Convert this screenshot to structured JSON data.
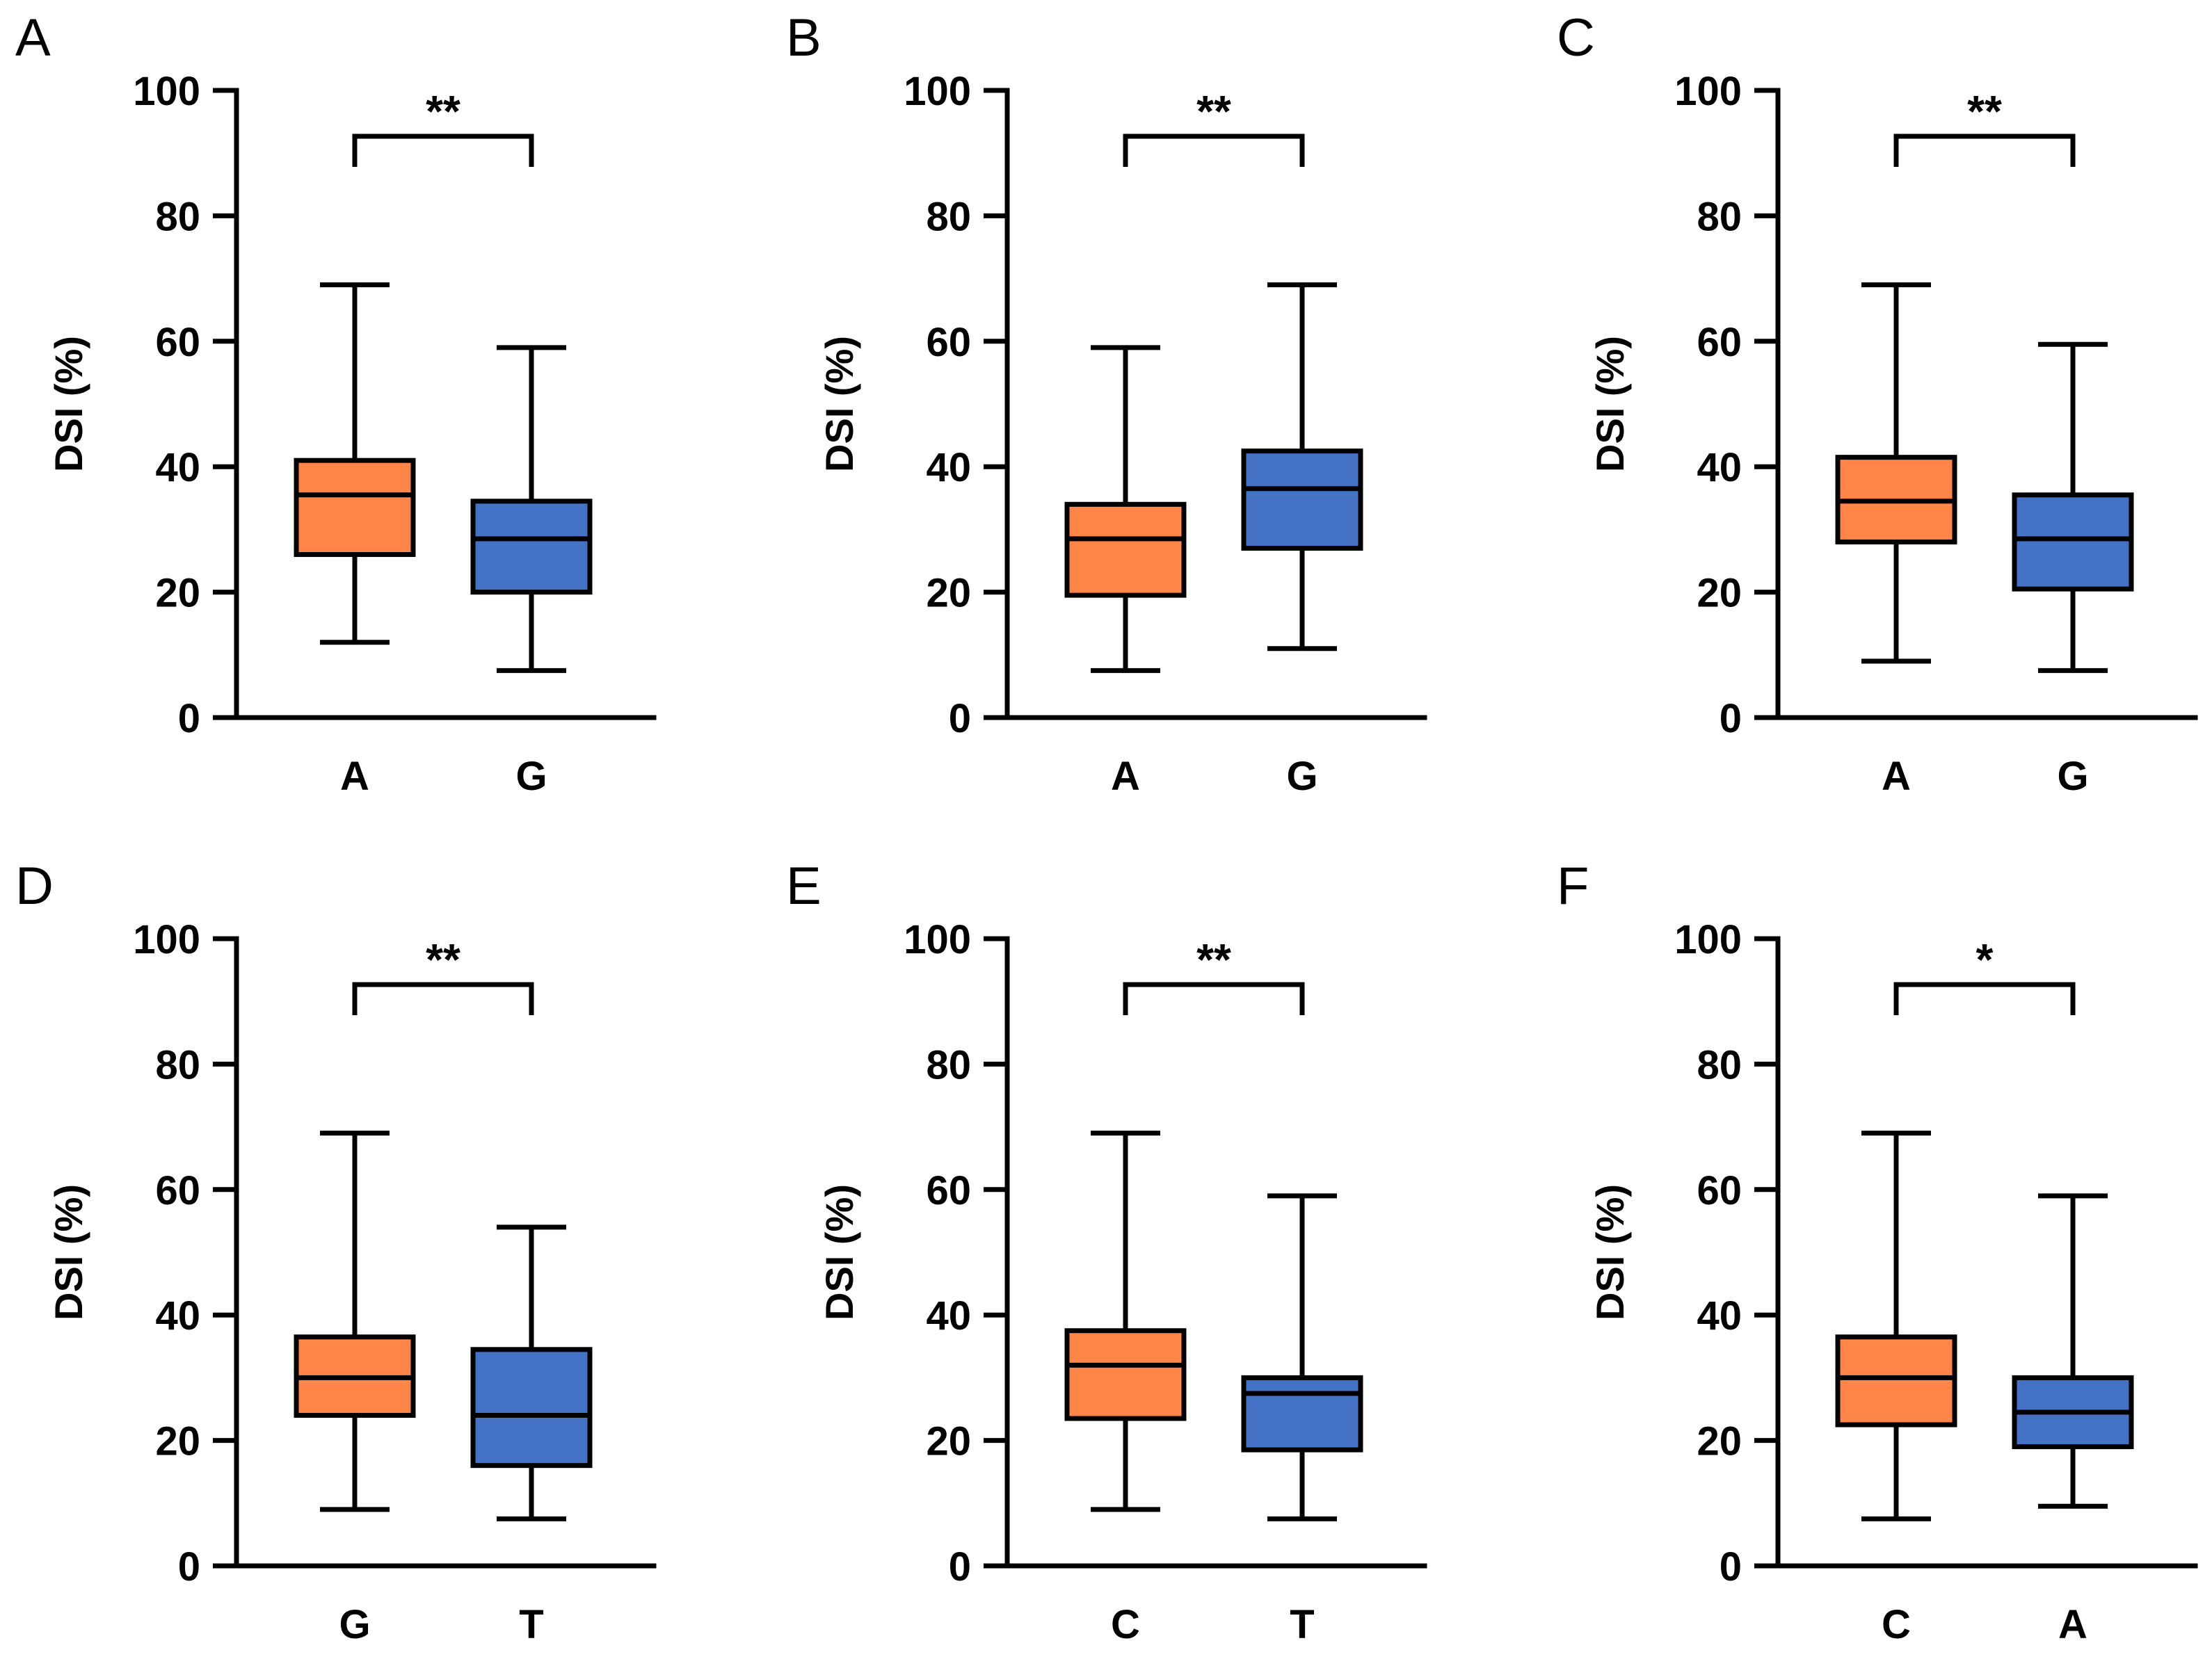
{
  "colors": {
    "orange": "#ff8548",
    "blue": "#4472c4",
    "axis": "#000000"
  },
  "chart_data": [
    {
      "panel": "A",
      "type": "box",
      "ylabel": "DSI (%)",
      "ylim": [
        0,
        100
      ],
      "yticks": [
        "0",
        "20",
        "40",
        "60",
        "80",
        "100"
      ],
      "categories": [
        "A",
        "G"
      ],
      "significance": "**",
      "boxes": [
        {
          "category": "A",
          "min": 12,
          "q1": 26,
          "median": 35.5,
          "q3": 41,
          "max": 69,
          "color": "#ff8548"
        },
        {
          "category": "G",
          "min": 7.5,
          "q1": 20,
          "median": 28.5,
          "q3": 34.5,
          "max": 59,
          "color": "#4472c4"
        }
      ]
    },
    {
      "panel": "B",
      "type": "box",
      "ylabel": "DSI (%)",
      "ylim": [
        0,
        100
      ],
      "yticks": [
        "0",
        "20",
        "40",
        "60",
        "80",
        "100"
      ],
      "categories": [
        "A",
        "G"
      ],
      "significance": "**",
      "boxes": [
        {
          "category": "A",
          "min": 7.5,
          "q1": 19.5,
          "median": 28.5,
          "q3": 34,
          "max": 59,
          "color": "#ff8548"
        },
        {
          "category": "G",
          "min": 11,
          "q1": 27,
          "median": 36.5,
          "q3": 42.5,
          "max": 69,
          "color": "#4472c4"
        }
      ]
    },
    {
      "panel": "C",
      "type": "box",
      "ylabel": "DSI (%)",
      "ylim": [
        0,
        100
      ],
      "yticks": [
        "0",
        "20",
        "40",
        "60",
        "80",
        "100"
      ],
      "categories": [
        "A",
        "G"
      ],
      "significance": "**",
      "boxes": [
        {
          "category": "A",
          "min": 9,
          "q1": 28,
          "median": 34.5,
          "q3": 41.5,
          "max": 69,
          "color": "#ff8548"
        },
        {
          "category": "G",
          "min": 7.5,
          "q1": 20.5,
          "median": 28.5,
          "q3": 35.5,
          "max": 59.5,
          "color": "#4472c4"
        }
      ]
    },
    {
      "panel": "D",
      "type": "box",
      "ylabel": "DSI (%)",
      "ylim": [
        0,
        100
      ],
      "yticks": [
        "0",
        "20",
        "40",
        "60",
        "80",
        "100"
      ],
      "categories": [
        "G",
        "T"
      ],
      "significance": "**",
      "boxes": [
        {
          "category": "G",
          "min": 9,
          "q1": 24,
          "median": 30,
          "q3": 36.5,
          "max": 69,
          "color": "#ff8548"
        },
        {
          "category": "T",
          "min": 7.5,
          "q1": 16,
          "median": 24,
          "q3": 34.5,
          "max": 54,
          "color": "#4472c4"
        }
      ]
    },
    {
      "panel": "E",
      "type": "box",
      "ylabel": "DSI (%)",
      "ylim": [
        0,
        100
      ],
      "yticks": [
        "0",
        "20",
        "40",
        "60",
        "80",
        "100"
      ],
      "categories": [
        "C",
        "T"
      ],
      "significance": "**",
      "boxes": [
        {
          "category": "C",
          "min": 9,
          "q1": 23.5,
          "median": 32,
          "q3": 37.5,
          "max": 69,
          "color": "#ff8548"
        },
        {
          "category": "T",
          "min": 7.5,
          "q1": 18.5,
          "median": 27.5,
          "q3": 30,
          "max": 59,
          "color": "#4472c4"
        }
      ]
    },
    {
      "panel": "F",
      "type": "box",
      "ylabel": "DSI (%)",
      "ylim": [
        0,
        100
      ],
      "yticks": [
        "0",
        "20",
        "40",
        "60",
        "80",
        "100"
      ],
      "categories": [
        "C",
        "A"
      ],
      "significance": "*",
      "boxes": [
        {
          "category": "C",
          "min": 7.5,
          "q1": 22.5,
          "median": 30,
          "q3": 36.5,
          "max": 69,
          "color": "#ff8548"
        },
        {
          "category": "A",
          "min": 9.5,
          "q1": 19,
          "median": 24.5,
          "q3": 30,
          "max": 59,
          "color": "#4472c4"
        }
      ]
    }
  ]
}
